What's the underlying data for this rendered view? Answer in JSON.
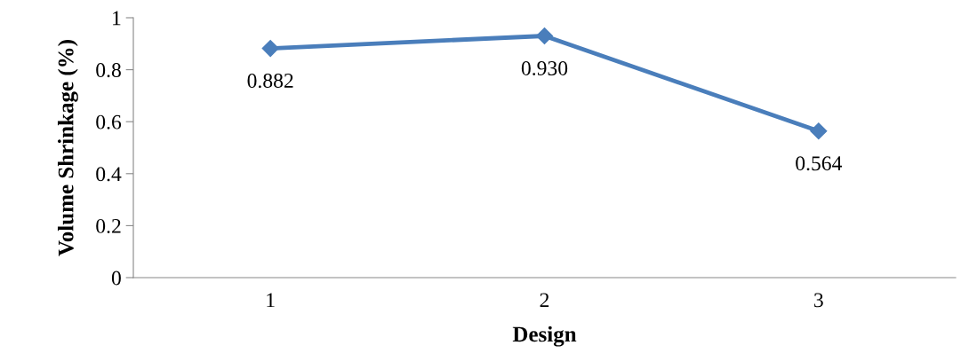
{
  "chart_data": {
    "type": "line",
    "xlabel": "Design",
    "ylabel": "Volume Shrinkage (%)",
    "categories": [
      "1",
      "2",
      "3"
    ],
    "series": [
      {
        "color": "#4a7ebb",
        "values": [
          0.882,
          0.93,
          0.564
        ],
        "value_labels": [
          "0.882",
          "0.930",
          "0.564"
        ]
      }
    ],
    "ylim": [
      0,
      1
    ],
    "yticks": [
      0,
      0.2,
      0.4,
      0.6,
      0.8,
      1
    ],
    "grid": false,
    "legend": false,
    "marker": "diamond",
    "line_style": "solid"
  }
}
